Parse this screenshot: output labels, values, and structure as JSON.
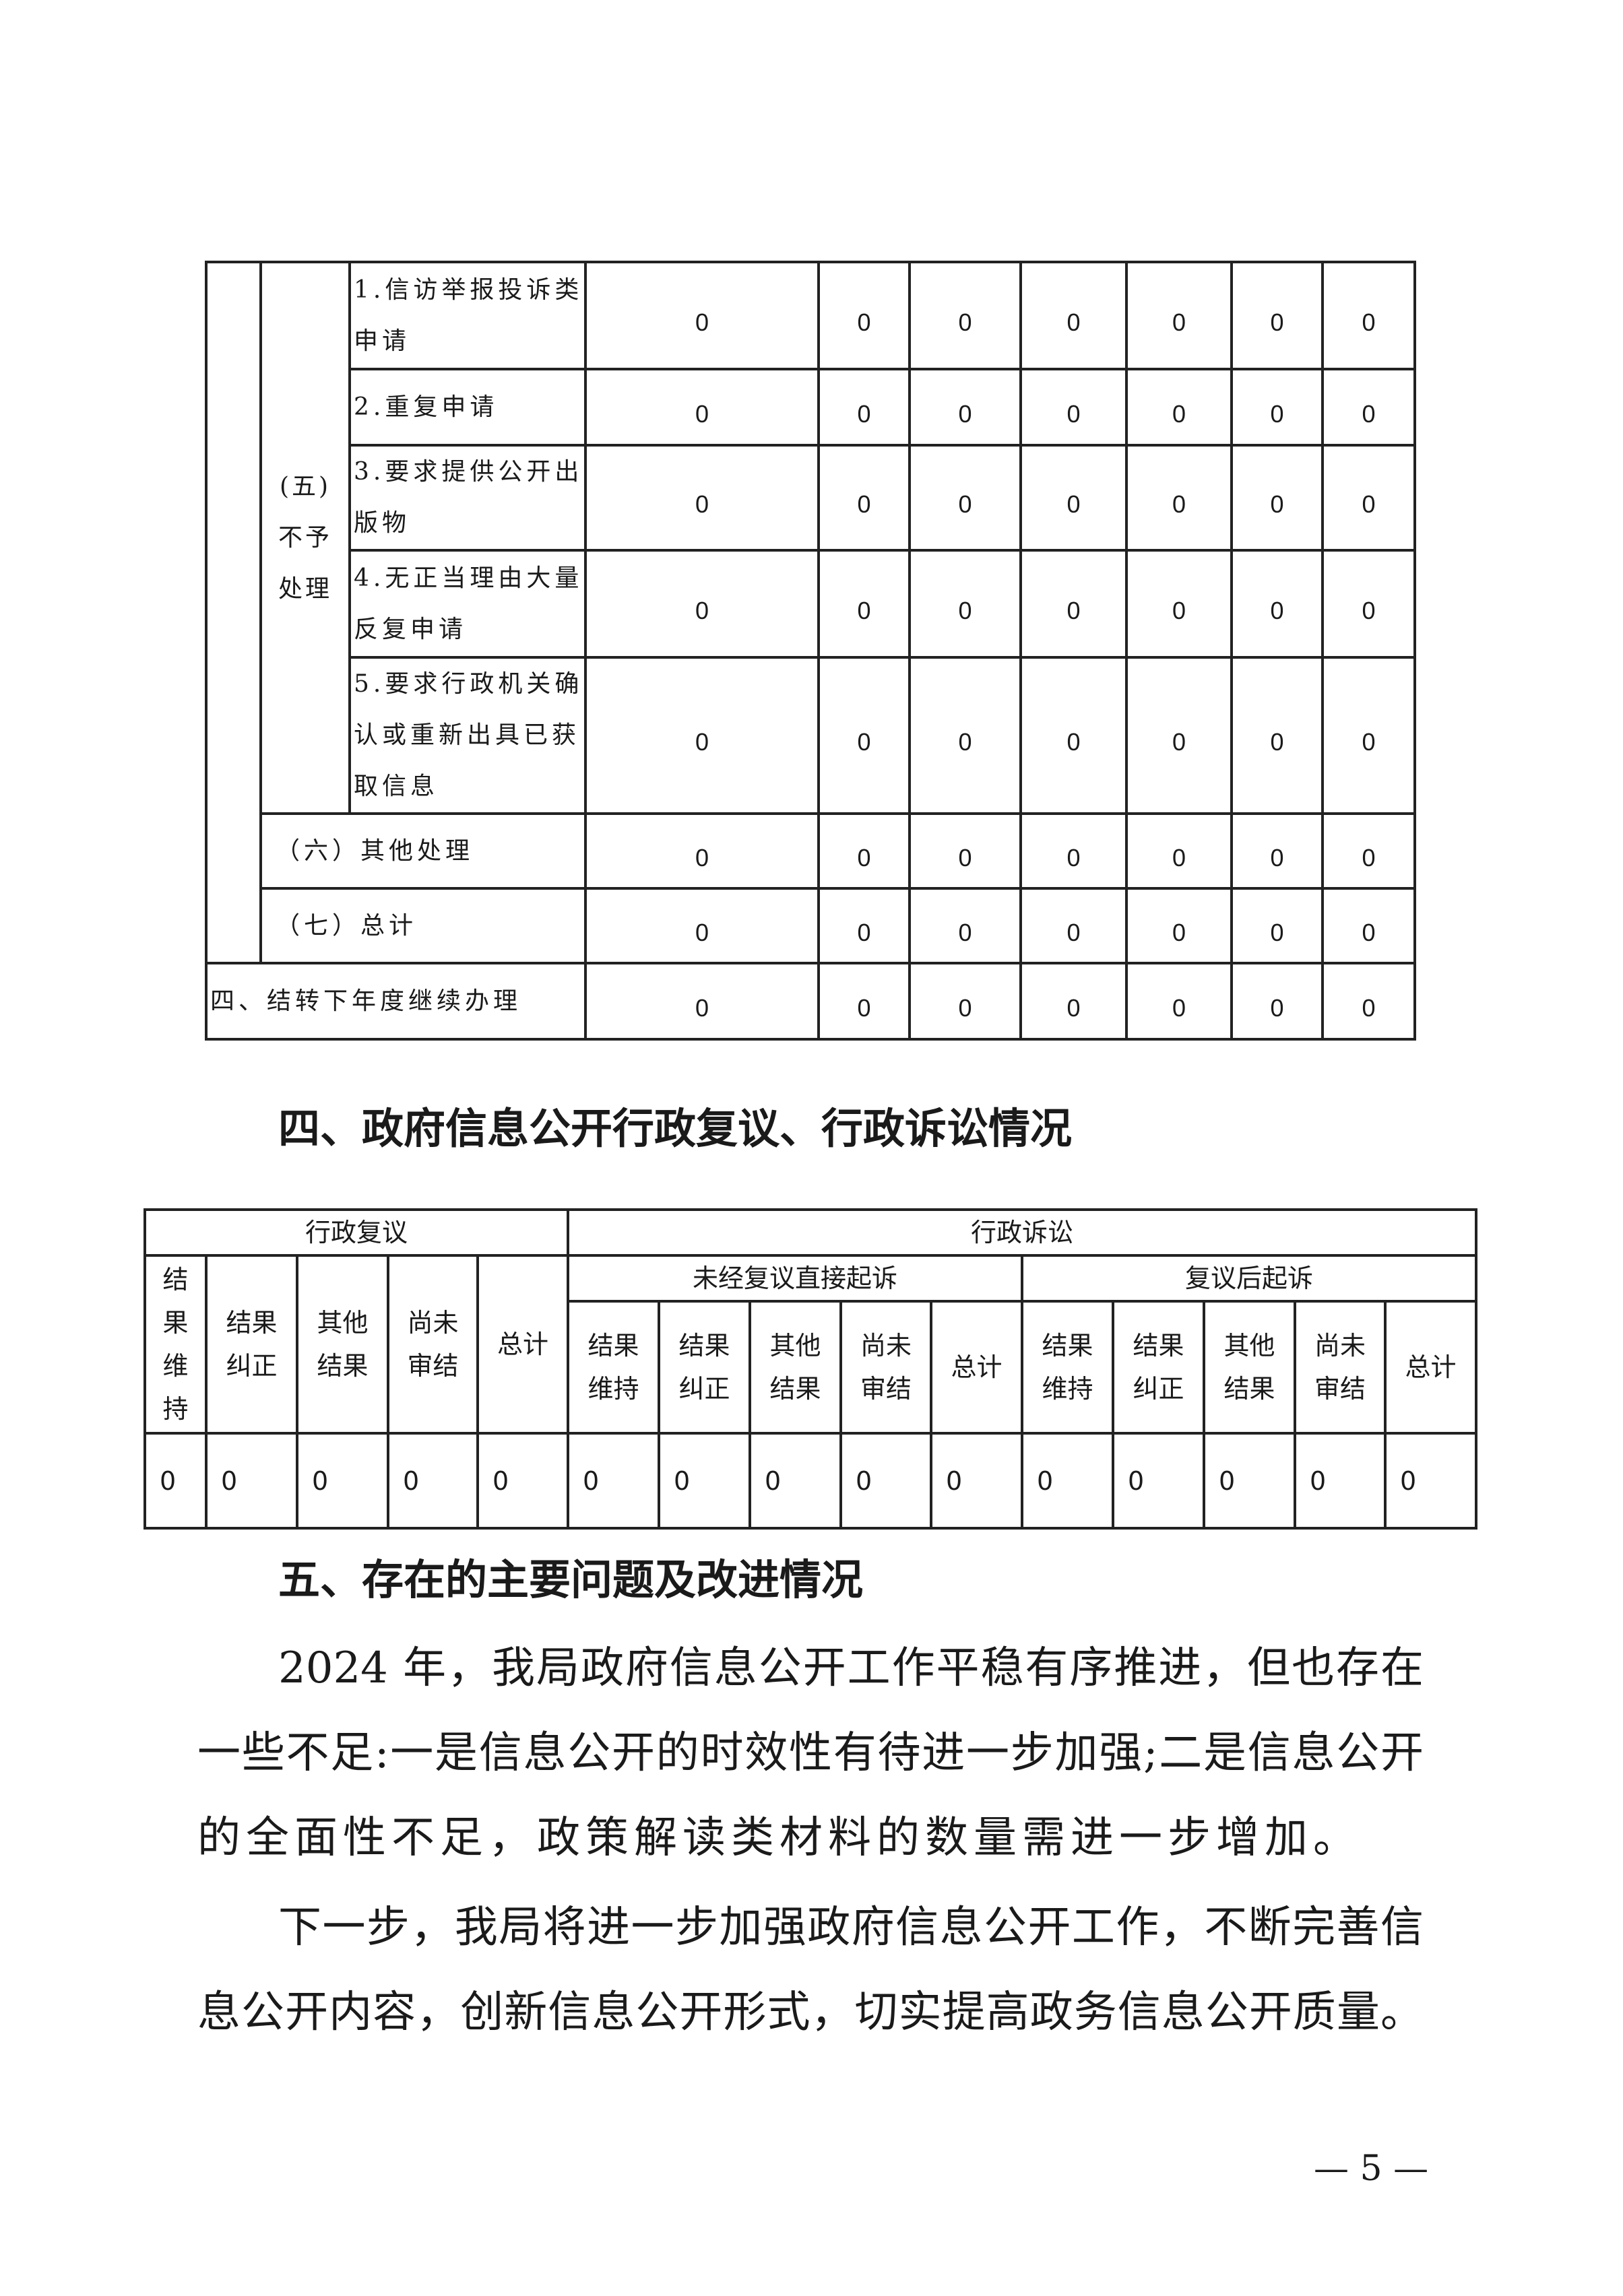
{
  "table_processing": {
    "group_label": "(五)不予处理",
    "group_label_lines": [
      "（五）",
      "不予",
      "处理"
    ],
    "rows": [
      {
        "label": "1.信访举报投诉类申请",
        "lines": [
          "1.信访举报投诉类",
          "申请"
        ],
        "values": [
          "0",
          "0",
          "0",
          "0",
          "0",
          "0",
          "0"
        ]
      },
      {
        "label": "2.重复申请",
        "lines": [
          "2.重复申请"
        ],
        "values": [
          "0",
          "0",
          "0",
          "0",
          "0",
          "0",
          "0"
        ]
      },
      {
        "label": "3.要求提供公开出版物",
        "lines": [
          "3.要求提供公开出",
          "版物"
        ],
        "values": [
          "0",
          "0",
          "0",
          "0",
          "0",
          "0",
          "0"
        ]
      },
      {
        "label": "4.无正当理由大量反复申请",
        "lines": [
          "4.无正当理由大量",
          "反复申请"
        ],
        "values": [
          "0",
          "0",
          "0",
          "0",
          "0",
          "0",
          "0"
        ]
      },
      {
        "label": "5.要求行政机关确认或重新出具已获取信息",
        "lines": [
          "5.要求行政机关确",
          "认或重新出具已获",
          "取信息"
        ],
        "values": [
          "0",
          "0",
          "0",
          "0",
          "0",
          "0",
          "0"
        ]
      }
    ],
    "other": {
      "label": "（六）其他处理",
      "values": [
        "0",
        "0",
        "0",
        "0",
        "0",
        "0",
        "0"
      ]
    },
    "total": {
      "label": "（七）总计",
      "values": [
        "0",
        "0",
        "0",
        "0",
        "0",
        "0",
        "0"
      ]
    },
    "carryover": {
      "label": "四、结转下年度继续办理",
      "values": [
        "0",
        "0",
        "0",
        "0",
        "0",
        "0",
        "0"
      ]
    }
  },
  "section4": {
    "heading": "四、政府信息公开行政复议、行政诉讼情况",
    "table": {
      "review_header": "行政复议",
      "litigation_header": "行政诉讼",
      "direct_header": "未经复议直接起诉",
      "after_review_header": "复议后起诉",
      "review_cols": [
        "结果维持",
        "结果纠正",
        "其他结果",
        "尚未审结",
        "总计"
      ],
      "review_cols_lines": [
        [
          "结",
          "果",
          "维",
          "持"
        ],
        [
          "结果",
          "纠正"
        ],
        [
          "其他",
          "结果"
        ],
        [
          "尚未",
          "审结"
        ],
        [
          "总计"
        ]
      ],
      "lit_cols_lines": [
        [
          "结果",
          "维持"
        ],
        [
          "结果",
          "纠正"
        ],
        [
          "其他",
          "结果"
        ],
        [
          "尚未",
          "审结"
        ],
        [
          "总计"
        ]
      ],
      "values": [
        "0",
        "0",
        "0",
        "0",
        "0",
        "0",
        "0",
        "0",
        "0",
        "0",
        "0",
        "0",
        "0",
        "0",
        "0"
      ]
    }
  },
  "section5": {
    "heading": "五、存在的主要问题及改进情况",
    "paragraph1_lines": [
      "2024 年，我局政府信息公开工作平稳有序推进，但也存在",
      "一些不足:一是信息公开的时效性有待进一步加强;二是信息公开",
      "的全面性不足，政策解读类材料的数量需进一步增加。"
    ],
    "paragraph2_lines": [
      "下一步，我局将进一步加强政府信息公开工作，不断完善信",
      "息公开内容，创新信息公开形式，切实提高政务信息公开质量。"
    ]
  },
  "page_number": "— 5 —"
}
